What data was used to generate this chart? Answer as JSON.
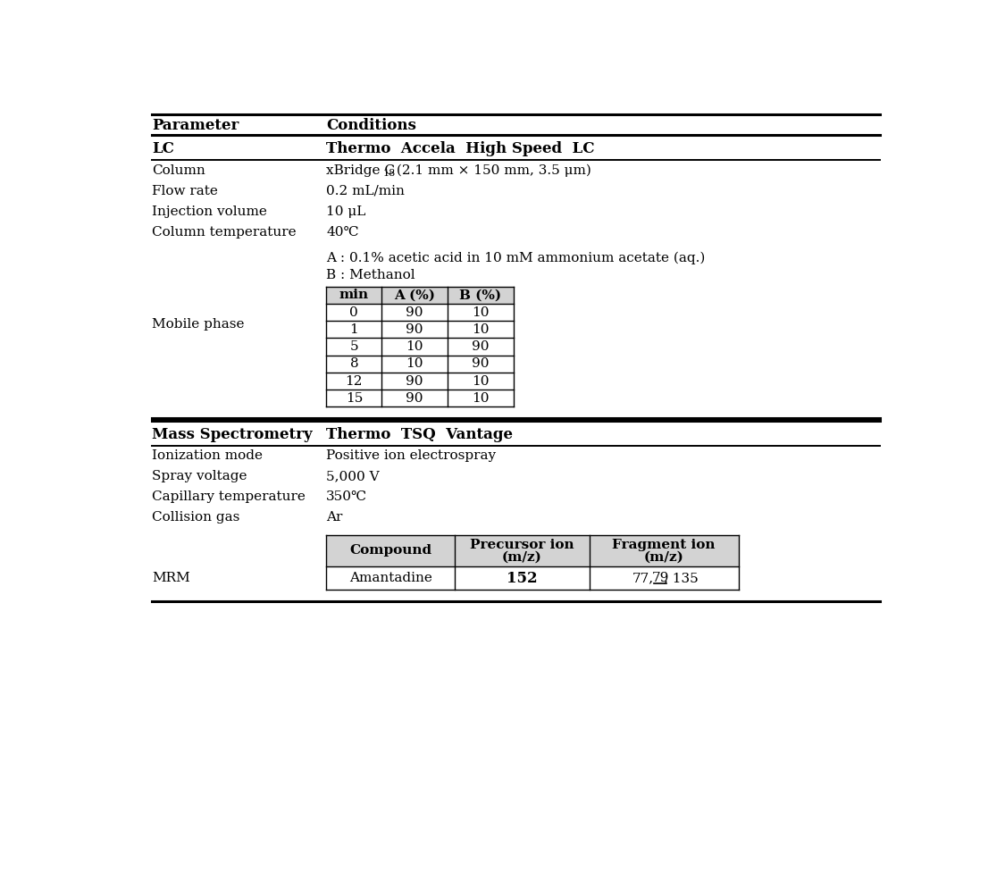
{
  "bg_color": "#ffffff",
  "header_row": [
    "Parameter",
    "Conditions"
  ],
  "lc_label": "LC",
  "lc_value": "Thermo  Accela  High Speed  LC",
  "ms_label": "Mass Spectrometry",
  "ms_value": "Thermo  TSQ  Vantage",
  "lc_params": [
    [
      "Column",
      "xBridge C18 (2.1 mm × 150 mm, 3.5 μm)"
    ],
    [
      "Flow rate",
      "0.2 mL/min"
    ],
    [
      "Injection volume",
      "10 μL"
    ],
    [
      "Column temperature",
      "40℃"
    ]
  ],
  "mobile_phase_label": "Mobile phase",
  "mobile_phase_A": "A : 0.1% acetic acid in 10 mM ammonium acetate (aq.)",
  "mobile_phase_B": "B : Methanol",
  "gradient_headers": [
    "min",
    "A (%)",
    "B (%)"
  ],
  "gradient_data": [
    [
      "0",
      "90",
      "10"
    ],
    [
      "1",
      "90",
      "10"
    ],
    [
      "5",
      "10",
      "90"
    ],
    [
      "8",
      "10",
      "90"
    ],
    [
      "12",
      "90",
      "10"
    ],
    [
      "15",
      "90",
      "10"
    ]
  ],
  "ms_params": [
    [
      "Ionization mode",
      "Positive ion electrospray"
    ],
    [
      "Spray voltage",
      "5,000 V"
    ],
    [
      "Capillary temperature",
      "350℃"
    ],
    [
      "Collision gas",
      "Ar"
    ]
  ],
  "mrm_label": "MRM",
  "mrm_headers_line1": [
    "Compound",
    "Precursor ion",
    "Fragment ion"
  ],
  "mrm_headers_line2": [
    "",
    "(m/z)",
    "(m/z)"
  ],
  "mrm_compound": "Amantadine",
  "mrm_precursor": "152",
  "mrm_fragment_parts": [
    "77,",
    "79",
    ", 135"
  ],
  "table_bg": "#d3d3d3",
  "table_border": "#000000",
  "text_color": "#000000"
}
